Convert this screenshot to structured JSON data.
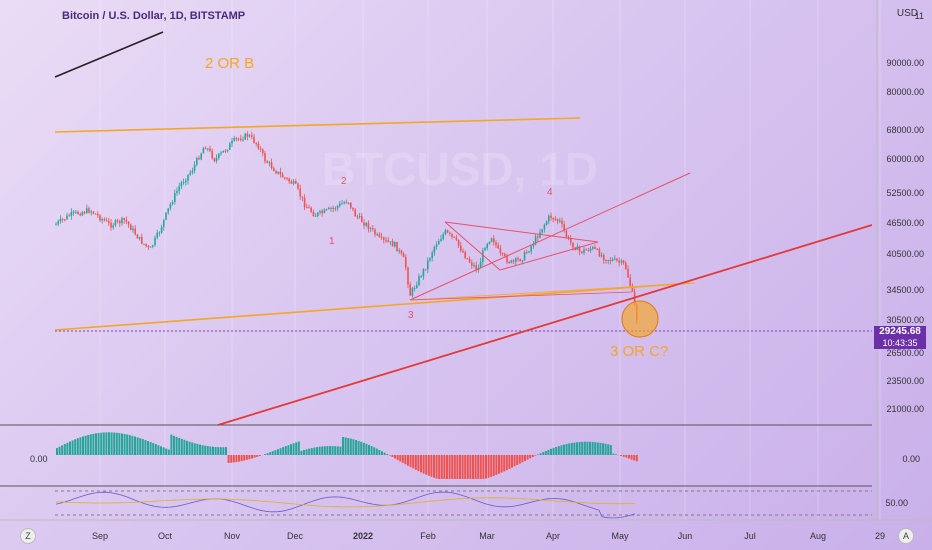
{
  "header": {
    "symbol_title": "Bitcoin / U.S. Dollar, 1D, BITSTAMP",
    "currency": "USD"
  },
  "price_axis": {
    "ticks": [
      "11",
      "90000.00",
      "80000.00",
      "68000.00",
      "60000.00",
      "52500.00",
      "46500.00",
      "40500.00",
      "34500.00",
      "30500.00",
      "26500.00",
      "23500.00",
      "21000.00"
    ]
  },
  "macd_axis": {
    "ticks": [
      "0.00"
    ]
  },
  "rsi_axis": {
    "ticks": [
      "50.00"
    ]
  },
  "current_price": {
    "value": "29245.68",
    "countdown": "10:43:35"
  },
  "time_axis": {
    "labels": [
      "Sep",
      "Oct",
      "Nov",
      "Dec",
      "2022",
      "Feb",
      "Mar",
      "Apr",
      "May",
      "Jun",
      "Jul",
      "Aug",
      "29"
    ]
  },
  "annotations": {
    "wave_2_or_b": "2 OR B",
    "wave_3_or_c": "3 OR C?",
    "wave_1": "1",
    "wave_2": "2",
    "wave_3": "3",
    "wave_4": "4"
  },
  "watermark": "BTCUSD, 1D",
  "buttons": {
    "left_zoom": "Z",
    "right_auto": "A"
  },
  "colors": {
    "bull": "#26a69a",
    "bear": "#ef5350",
    "trendline_orange": "#f5a623",
    "trendline_red": "#e53935",
    "channel_pink": "#e8506a",
    "price_tag": "#6b2fa8"
  },
  "chart_data": {
    "type": "candlestick",
    "title": "Bitcoin / U.S. Dollar, 1D, BITSTAMP",
    "x_range": [
      "Aug 2021",
      "Sep 2022"
    ],
    "y_scale": "log",
    "ylim": [
      19500,
      110000
    ],
    "last_price": 29245.68,
    "closes_monthly_approx": [
      {
        "x": "Aug 2021",
        "close": 46000
      },
      {
        "x": "Sep 2021",
        "close": 43500
      },
      {
        "x": "Oct 2021",
        "close": 61000
      },
      {
        "x": "Nov 2021",
        "close": 57000
      },
      {
        "x": "Dec 2021",
        "close": 46300
      },
      {
        "x": "Jan 2022",
        "close": 38500
      },
      {
        "x": "Feb 2022",
        "close": 43200
      },
      {
        "x": "Mar 2022",
        "close": 45500
      },
      {
        "x": "Apr 2022",
        "close": 38600
      },
      {
        "x": "May 2022",
        "close": 29245
      }
    ],
    "indicators": [
      "MACD histogram",
      "RSI"
    ]
  }
}
